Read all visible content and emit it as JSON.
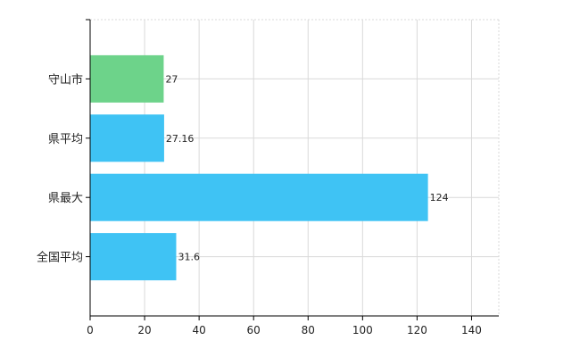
{
  "chart_data": {
    "type": "bar",
    "orientation": "horizontal",
    "categories": [
      "守山市",
      "県平均",
      "県最大",
      "全国平均"
    ],
    "values": [
      27,
      27.16,
      124,
      31.6
    ],
    "value_labels": [
      "27",
      "27.16",
      "124",
      "31.6"
    ],
    "bar_colors": [
      "#6dd38a",
      "#3fc3f4",
      "#3fc3f4",
      "#3fc3f4"
    ],
    "xlim": [
      0,
      150
    ],
    "x_ticks": [
      0,
      20,
      40,
      60,
      80,
      100,
      120,
      140
    ],
    "grid": true,
    "legend": "none",
    "title": "",
    "xlabel": "",
    "ylabel": ""
  }
}
